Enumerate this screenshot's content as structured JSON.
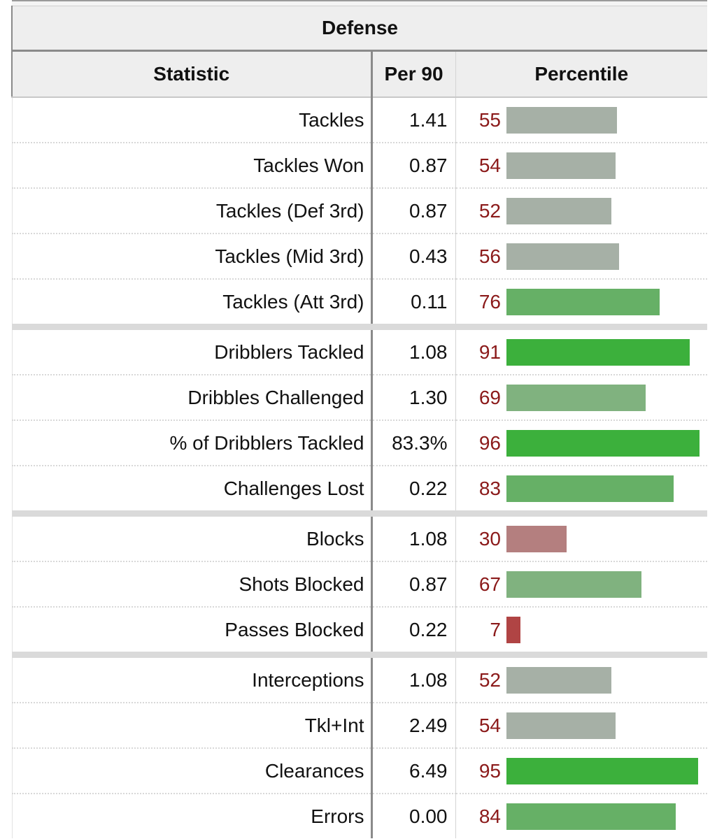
{
  "section": {
    "title": "Defense"
  },
  "columns": {
    "statistic": "Statistic",
    "per90": "Per 90",
    "percentile": "Percentile"
  },
  "bar_colors": {
    "very_low": "#b04444",
    "low": "#b47f7f",
    "neutral": "#a6b0a6",
    "above": "#80b27f",
    "high": "#66b066",
    "very_high": "#3cb03c"
  },
  "groups": [
    {
      "rows": [
        {
          "stat": "Tackles",
          "per90": "1.41",
          "percentile": 55
        },
        {
          "stat": "Tackles Won",
          "per90": "0.87",
          "percentile": 54
        },
        {
          "stat": "Tackles (Def 3rd)",
          "per90": "0.87",
          "percentile": 52
        },
        {
          "stat": "Tackles (Mid 3rd)",
          "per90": "0.43",
          "percentile": 56
        },
        {
          "stat": "Tackles (Att 3rd)",
          "per90": "0.11",
          "percentile": 76
        }
      ]
    },
    {
      "rows": [
        {
          "stat": "Dribblers Tackled",
          "per90": "1.08",
          "percentile": 91
        },
        {
          "stat": "Dribbles Challenged",
          "per90": "1.30",
          "percentile": 69
        },
        {
          "stat": "% of Dribblers Tackled",
          "per90": "83.3%",
          "percentile": 96
        },
        {
          "stat": "Challenges Lost",
          "per90": "0.22",
          "percentile": 83
        }
      ]
    },
    {
      "rows": [
        {
          "stat": "Blocks",
          "per90": "1.08",
          "percentile": 30
        },
        {
          "stat": "Shots Blocked",
          "per90": "0.87",
          "percentile": 67
        },
        {
          "stat": "Passes Blocked",
          "per90": "0.22",
          "percentile": 7
        }
      ]
    },
    {
      "rows": [
        {
          "stat": "Interceptions",
          "per90": "1.08",
          "percentile": 52
        },
        {
          "stat": "Tkl+Int",
          "per90": "2.49",
          "percentile": 54
        },
        {
          "stat": "Clearances",
          "per90": "6.49",
          "percentile": 95
        },
        {
          "stat": "Errors",
          "per90": "0.00",
          "percentile": 84
        }
      ]
    }
  ]
}
